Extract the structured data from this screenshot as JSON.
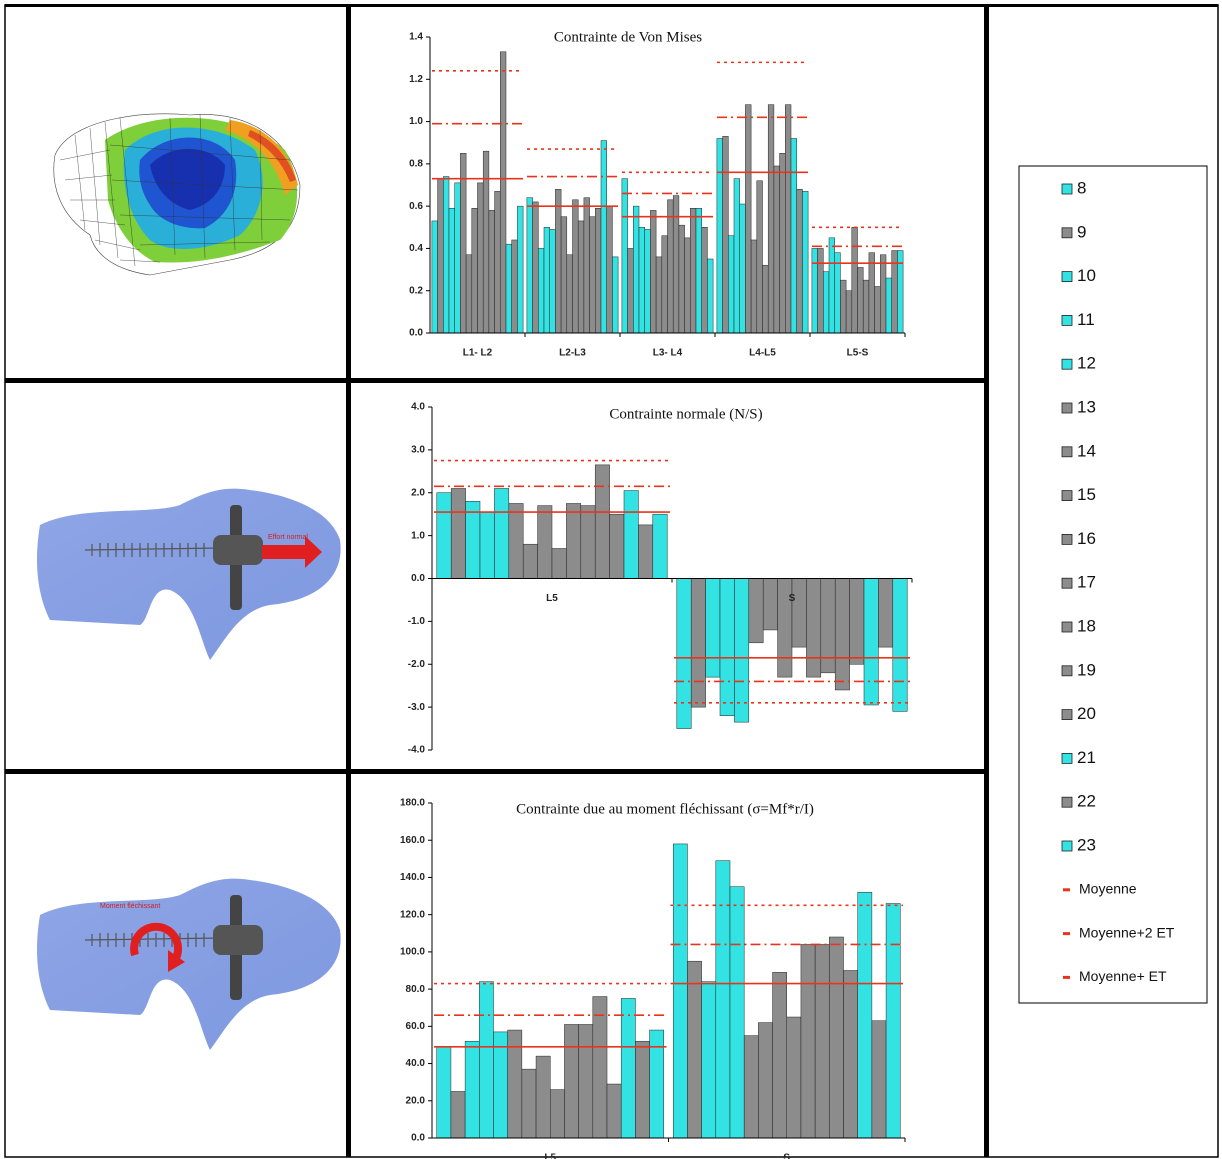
{
  "panels": [
    {
      "label": "Effort normal"
    },
    {
      "label": "Moment fléchissant"
    }
  ],
  "legend": {
    "series": [
      {
        "name": "8",
        "color": "#33e3e3"
      },
      {
        "name": "9",
        "color": "#8c8c8c"
      },
      {
        "name": "10",
        "color": "#33e3e3"
      },
      {
        "name": "11",
        "color": "#33e3e3"
      },
      {
        "name": "12",
        "color": "#33e3e3"
      },
      {
        "name": "13",
        "color": "#8c8c8c"
      },
      {
        "name": "14",
        "color": "#8c8c8c"
      },
      {
        "name": "15",
        "color": "#8c8c8c"
      },
      {
        "name": "16",
        "color": "#8c8c8c"
      },
      {
        "name": "17",
        "color": "#8c8c8c"
      },
      {
        "name": "18",
        "color": "#8c8c8c"
      },
      {
        "name": "19",
        "color": "#8c8c8c"
      },
      {
        "name": "20",
        "color": "#8c8c8c"
      },
      {
        "name": "21",
        "color": "#33e3e3"
      },
      {
        "name": "22",
        "color": "#8c8c8c"
      },
      {
        "name": "23",
        "color": "#33e3e3"
      }
    ],
    "lines": [
      {
        "name": "Moyenne",
        "color": "#e8341c",
        "dash": "solid"
      },
      {
        "name": "Moyenne+2 ET",
        "color": "#e8341c",
        "dash": "dotted"
      },
      {
        "name": "Moyenne+ ET",
        "color": "#e8341c",
        "dash": "dashdot"
      }
    ]
  },
  "chart_data": [
    {
      "type": "bar",
      "title": "Contrainte de Von Mises",
      "categories": [
        "L1- L2",
        "L2-L3",
        "L3- L4",
        "L4-L5",
        "L5-S"
      ],
      "ylim": [
        0,
        1.4
      ],
      "yticks": [
        {
          "value": 0,
          "label": "0.0"
        },
        {
          "value": 0.2,
          "label": "0.2"
        },
        {
          "value": 0.4,
          "label": "0.4"
        },
        {
          "value": 0.6,
          "label": "0.6"
        },
        {
          "value": 0.8,
          "label": "0.8"
        },
        {
          "value": 1.0,
          "label": "1.0"
        },
        {
          "value": 1.2,
          "label": "1.2"
        },
        {
          "value": 1.4,
          "label": "1.4"
        }
      ],
      "series": [
        {
          "values": [
            0.53,
            0.64,
            0.73,
            0.92,
            0.4
          ]
        },
        {
          "values": [
            0.73,
            0.62,
            0.4,
            0.93,
            0.4
          ]
        },
        {
          "values": [
            0.74,
            0.4,
            0.6,
            0.46,
            0.29
          ]
        },
        {
          "values": [
            0.59,
            0.5,
            0.5,
            0.73,
            0.45
          ]
        },
        {
          "values": [
            0.71,
            0.49,
            0.49,
            0.61,
            0.38
          ]
        },
        {
          "values": [
            0.85,
            0.68,
            0.58,
            1.08,
            0.25
          ]
        },
        {
          "values": [
            0.37,
            0.55,
            0.36,
            0.44,
            0.2
          ]
        },
        {
          "values": [
            0.59,
            0.37,
            0.46,
            0.72,
            0.5
          ]
        },
        {
          "values": [
            0.71,
            0.63,
            0.63,
            0.32,
            0.31
          ]
        },
        {
          "values": [
            0.86,
            0.53,
            0.65,
            1.08,
            0.25
          ]
        },
        {
          "values": [
            0.58,
            0.64,
            0.51,
            0.79,
            0.38
          ]
        },
        {
          "values": [
            0.67,
            0.55,
            0.45,
            0.85,
            0.22
          ]
        },
        {
          "values": [
            1.33,
            0.59,
            0.59,
            1.08,
            0.37
          ]
        },
        {
          "values": [
            0.42,
            0.91,
            0.59,
            0.92,
            0.26
          ]
        },
        {
          "values": [
            0.44,
            0.6,
            0.5,
            0.68,
            0.39
          ]
        },
        {
          "values": [
            0.6,
            0.36,
            0.35,
            0.67,
            0.39
          ]
        }
      ],
      "reference_lines": [
        {
          "values": [
            0.73,
            0.6,
            0.55,
            0.76,
            0.33
          ]
        },
        {
          "values": [
            1.24,
            0.87,
            0.76,
            1.28,
            0.5
          ]
        },
        {
          "values": [
            0.99,
            0.74,
            0.66,
            1.02,
            0.41
          ]
        }
      ]
    },
    {
      "type": "bar",
      "title": "Contrainte normale (N/S)",
      "categories": [
        "L5",
        "S"
      ],
      "ylim": [
        -4,
        4
      ],
      "yticks": [
        {
          "value": -4,
          "label": "-4.0"
        },
        {
          "value": -3,
          "label": "-3.0"
        },
        {
          "value": -2,
          "label": "-2.0"
        },
        {
          "value": -1,
          "label": "-1.0"
        },
        {
          "value": 0,
          "label": "0.0"
        },
        {
          "value": 1,
          "label": "1.0"
        },
        {
          "value": 2,
          "label": "2.0"
        },
        {
          "value": 3,
          "label": "3.0"
        },
        {
          "value": 4,
          "label": "4.0"
        }
      ],
      "series": [
        {
          "values": [
            2.0,
            -3.5
          ]
        },
        {
          "values": [
            2.1,
            -3.0
          ]
        },
        {
          "values": [
            1.8,
            -2.3
          ]
        },
        {
          "values": [
            1.55,
            -3.2
          ]
        },
        {
          "values": [
            2.1,
            -3.35
          ]
        },
        {
          "values": [
            1.75,
            -1.5
          ]
        },
        {
          "values": [
            0.8,
            -1.2
          ]
        },
        {
          "values": [
            1.7,
            -2.3
          ]
        },
        {
          "values": [
            0.7,
            -1.6
          ]
        },
        {
          "values": [
            1.75,
            -2.3
          ]
        },
        {
          "values": [
            1.7,
            -2.2
          ]
        },
        {
          "values": [
            2.65,
            -2.6
          ]
        },
        {
          "values": [
            1.5,
            -2.0
          ]
        },
        {
          "values": [
            2.05,
            -2.95
          ]
        },
        {
          "values": [
            1.25,
            -1.6
          ]
        },
        {
          "values": [
            1.5,
            -3.1
          ]
        }
      ],
      "reference_lines": [
        {
          "values": [
            1.55,
            -1.85
          ]
        },
        {
          "values": [
            2.75,
            -2.9
          ]
        },
        {
          "values": [
            2.15,
            -2.4
          ]
        }
      ]
    },
    {
      "type": "bar",
      "title": "Contrainte due au moment fléchissant (σ=Mf*r/I)",
      "categories": [
        "L5",
        "S"
      ],
      "ylim": [
        0,
        180
      ],
      "yticks": [
        {
          "value": 0,
          "label": "0.0"
        },
        {
          "value": 20,
          "label": "20.0"
        },
        {
          "value": 40,
          "label": "40.0"
        },
        {
          "value": 60,
          "label": "60.0"
        },
        {
          "value": 80,
          "label": "80.0"
        },
        {
          "value": 100,
          "label": "100.0"
        },
        {
          "value": 120,
          "label": "120.0"
        },
        {
          "value": 140,
          "label": "140.0"
        },
        {
          "value": 160,
          "label": "160.0"
        },
        {
          "value": 180,
          "label": "180.0"
        }
      ],
      "series": [
        {
          "values": [
            49,
            158
          ]
        },
        {
          "values": [
            25,
            95
          ]
        },
        {
          "values": [
            52,
            84
          ]
        },
        {
          "values": [
            84,
            149
          ]
        },
        {
          "values": [
            57,
            135
          ]
        },
        {
          "values": [
            58,
            55
          ]
        },
        {
          "values": [
            37,
            62
          ]
        },
        {
          "values": [
            44,
            89
          ]
        },
        {
          "values": [
            26,
            65
          ]
        },
        {
          "values": [
            61,
            104
          ]
        },
        {
          "values": [
            61,
            104
          ]
        },
        {
          "values": [
            76,
            108
          ]
        },
        {
          "values": [
            29,
            90
          ]
        },
        {
          "values": [
            75,
            132
          ]
        },
        {
          "values": [
            52,
            63
          ]
        },
        {
          "values": [
            58,
            126
          ]
        }
      ],
      "reference_lines": [
        {
          "values": [
            49,
            83
          ]
        },
        {
          "values": [
            83,
            125
          ]
        },
        {
          "values": [
            66,
            104
          ]
        }
      ]
    }
  ]
}
